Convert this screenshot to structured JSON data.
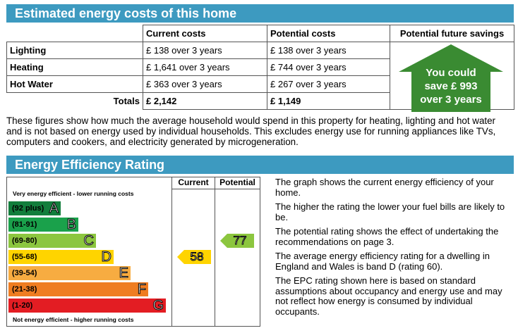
{
  "costs_section": {
    "title": "Estimated energy costs of this home",
    "headers": [
      "",
      "Current costs",
      "Potential costs",
      "Potential future savings"
    ],
    "rows": [
      {
        "label": "Lighting",
        "current": "£ 138 over 3 years",
        "potential": "£ 138 over 3 years"
      },
      {
        "label": "Heating",
        "current": "£ 1,641 over 3 years",
        "potential": "£ 744 over 3 years"
      },
      {
        "label": "Hot Water",
        "current": "£ 363 over 3 years",
        "potential": "£ 267 over 3 years"
      }
    ],
    "totals": {
      "label": "Totals",
      "current": "£ 2,142",
      "potential": "£ 1,149"
    },
    "savings": {
      "line1": "You could",
      "line2": "save £ 993",
      "line3": "over 3 years",
      "color": "#3a8b32"
    },
    "explanation": "These figures show how much the average household would spend in this property for heating, lighting and hot water and is not based on energy used by individual households. This excludes energy use for running appliances like TVs, computers and cookers, and electricity generated by microgeneration."
  },
  "rating_section": {
    "title": "Energy Efficiency Rating",
    "col_current": "Current",
    "col_potential": "Potential",
    "top_caption": "Very energy efficient - lower running costs",
    "bottom_caption": "Not energy efficient - higher running costs",
    "bands": [
      {
        "range": "(92 plus)",
        "letter": "A",
        "color": "#127e3c"
      },
      {
        "range": "(81-91)",
        "letter": "B",
        "color": "#1aa14b"
      },
      {
        "range": "(69-80)",
        "letter": "C",
        "color": "#8cc63f"
      },
      {
        "range": "(55-68)",
        "letter": "D",
        "color": "#ffd400"
      },
      {
        "range": "(39-54)",
        "letter": "E",
        "color": "#f7ac41"
      },
      {
        "range": "(21-38)",
        "letter": "F",
        "color": "#ef7d22"
      },
      {
        "range": "(1-20)",
        "letter": "G",
        "color": "#e31d23"
      }
    ],
    "current_rating": {
      "value": "58",
      "band": "D",
      "color": "#ffd400"
    },
    "potential_rating": {
      "value": "77",
      "band": "C",
      "color": "#8cc63f"
    },
    "notes": [
      "The graph shows the current energy efficiency of your home.",
      "The higher the rating the lower your fuel bills are likely to be.",
      "The potential rating shows the effect of undertaking the recommendations on page 3.",
      "The average energy efficiency rating for a dwelling in England and Wales is band D (rating 60).",
      "The EPC rating shown here is based on standard assumptions about occupancy and energy use and may not reflect how energy is consumed by individual occupants."
    ]
  }
}
